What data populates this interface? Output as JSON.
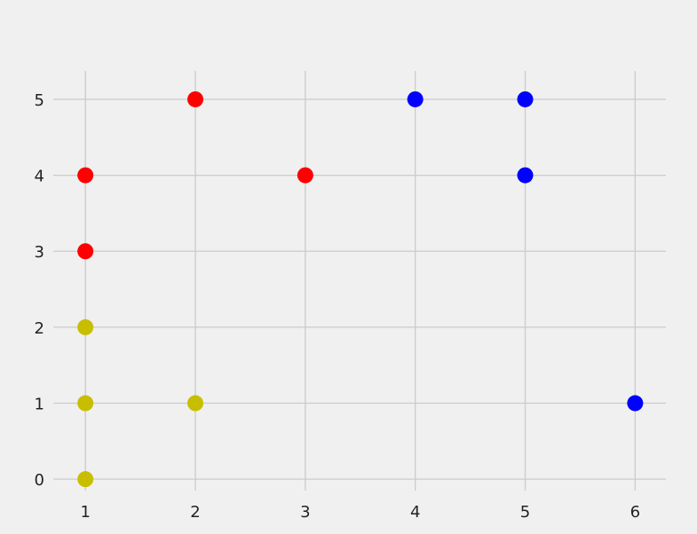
{
  "chart_data": {
    "type": "scatter",
    "title": "",
    "xlabel": "",
    "ylabel": "",
    "xlim": [
      0.95,
      6.28
    ],
    "ylim": [
      -0.15,
      5.28
    ],
    "xticks": [
      "1",
      "2",
      "3",
      "4",
      "5",
      "6"
    ],
    "yticks": [
      "0",
      "1",
      "2",
      "3",
      "4",
      "5"
    ],
    "grid": true,
    "background": "#f0f0f0",
    "grid_color": "#cbcbcb",
    "series": [
      {
        "color": "#ff0000",
        "points": [
          [
            1,
            4
          ],
          [
            1,
            3
          ],
          [
            2,
            5
          ],
          [
            3,
            4
          ]
        ]
      },
      {
        "color": "#0000ff",
        "points": [
          [
            4,
            5
          ],
          [
            5,
            5
          ],
          [
            5,
            4
          ],
          [
            6,
            1
          ]
        ]
      },
      {
        "color": "#c8be00",
        "points": [
          [
            1,
            2
          ],
          [
            1,
            1
          ],
          [
            1,
            0
          ],
          [
            2,
            1
          ]
        ]
      }
    ]
  }
}
